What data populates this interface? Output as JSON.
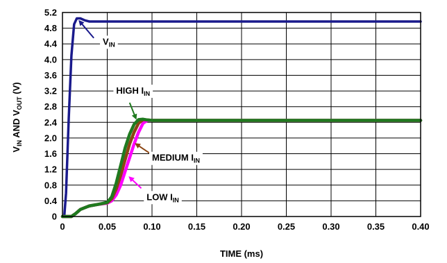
{
  "chart_data": {
    "type": "line",
    "title": "",
    "xlabel": "TIME (ms)",
    "ylabel": {
      "parts": [
        {
          "t": "V",
          "sub": false
        },
        {
          "t": "IN",
          "sub": true
        },
        {
          "t": " AND V",
          "sub": false
        },
        {
          "t": "OUT",
          "sub": true
        },
        {
          "t": " (V)",
          "sub": false
        }
      ]
    },
    "xlim": [
      0,
      0.4
    ],
    "ylim": [
      0,
      5.2
    ],
    "grid": true,
    "legend": "none",
    "x_ticks": [
      {
        "v": 0,
        "label": "0"
      },
      {
        "v": 0.05,
        "label": "0.05"
      },
      {
        "v": 0.1,
        "label": "0.10"
      },
      {
        "v": 0.15,
        "label": "0.15"
      },
      {
        "v": 0.2,
        "label": "0.20"
      },
      {
        "v": 0.25,
        "label": "0.25"
      },
      {
        "v": 0.3,
        "label": "0.30"
      },
      {
        "v": 0.35,
        "label": "0.35"
      },
      {
        "v": 0.4,
        "label": "0.40"
      }
    ],
    "y_ticks": [
      {
        "v": 0,
        "label": "0"
      },
      {
        "v": 0.4,
        "label": "0.4"
      },
      {
        "v": 0.8,
        "label": "0.8"
      },
      {
        "v": 1.2,
        "label": "1.2"
      },
      {
        "v": 1.6,
        "label": "1.6"
      },
      {
        "v": 2.0,
        "label": "2.0"
      },
      {
        "v": 2.4,
        "label": "2.4"
      },
      {
        "v": 2.8,
        "label": "2.8"
      },
      {
        "v": 3.2,
        "label": "3.2"
      },
      {
        "v": 3.6,
        "label": "3.6"
      },
      {
        "v": 4.0,
        "label": "4.0"
      },
      {
        "v": 4.4,
        "label": "4.4"
      },
      {
        "v": 4.8,
        "label": "4.8"
      },
      {
        "v": 5.2,
        "label": "5.2"
      }
    ],
    "series": [
      {
        "key": "vin",
        "color": "#1a1a8c",
        "x": [
          0,
          0.002,
          0.004,
          0.007,
          0.01,
          0.013,
          0.016,
          0.02,
          0.025,
          0.03,
          0.05,
          0.1,
          0.2,
          0.3,
          0.4
        ],
        "y": [
          0.0,
          0.0,
          0.6,
          2.5,
          4.1,
          4.9,
          5.05,
          5.05,
          5.0,
          4.97,
          4.97,
          4.97,
          4.97,
          4.97,
          4.97
        ]
      },
      {
        "key": "low",
        "color": "#ff00ff",
        "x": [
          0,
          0.01,
          0.015,
          0.02,
          0.03,
          0.04,
          0.05,
          0.055,
          0.06,
          0.065,
          0.07,
          0.075,
          0.08,
          0.085,
          0.09,
          0.095,
          0.1,
          0.2,
          0.3,
          0.4
        ],
        "y": [
          0.0,
          0.0,
          0.08,
          0.18,
          0.27,
          0.31,
          0.34,
          0.4,
          0.55,
          0.8,
          1.15,
          1.5,
          1.85,
          2.15,
          2.38,
          2.45,
          2.45,
          2.45,
          2.45,
          2.45
        ]
      },
      {
        "key": "medium",
        "color": "#8b4513",
        "x": [
          0,
          0.01,
          0.015,
          0.02,
          0.03,
          0.04,
          0.05,
          0.055,
          0.06,
          0.065,
          0.07,
          0.075,
          0.08,
          0.085,
          0.09,
          0.095,
          0.1,
          0.2,
          0.3,
          0.4
        ],
        "y": [
          0.0,
          0.0,
          0.08,
          0.18,
          0.27,
          0.31,
          0.35,
          0.45,
          0.7,
          1.05,
          1.45,
          1.85,
          2.15,
          2.38,
          2.47,
          2.46,
          2.45,
          2.45,
          2.45,
          2.45
        ]
      },
      {
        "key": "high",
        "color": "#1f7a1f",
        "x": [
          0,
          0.01,
          0.015,
          0.02,
          0.03,
          0.04,
          0.05,
          0.055,
          0.06,
          0.065,
          0.07,
          0.075,
          0.08,
          0.085,
          0.09,
          0.095,
          0.1,
          0.2,
          0.3,
          0.4
        ],
        "y": [
          0.0,
          0.0,
          0.08,
          0.18,
          0.27,
          0.31,
          0.36,
          0.5,
          0.85,
          1.3,
          1.75,
          2.1,
          2.35,
          2.47,
          2.48,
          2.46,
          2.45,
          2.45,
          2.45,
          2.45
        ]
      }
    ],
    "annotations": [
      {
        "key": "vin_label",
        "parts": [
          {
            "t": "V",
            "sub": false
          },
          {
            "t": "IN",
            "sub": true
          }
        ],
        "x": 0.045,
        "y": 4.38,
        "arrow_color": "#1a1a8c",
        "arrow_from": [
          0.035,
          4.55
        ],
        "arrow_to": [
          0.019,
          4.98
        ]
      },
      {
        "key": "high_label",
        "parts": [
          {
            "t": "HIGH I",
            "sub": false
          },
          {
            "t": "IN",
            "sub": true
          }
        ],
        "x": 0.06,
        "y": 3.13,
        "arrow_color": "#1f7a1f",
        "arrow_from": [
          0.075,
          2.9
        ],
        "arrow_to": [
          0.082,
          2.5
        ]
      },
      {
        "key": "medium_label",
        "parts": [
          {
            "t": "MEDIUM I",
            "sub": false
          },
          {
            "t": "IN",
            "sub": true
          }
        ],
        "x": 0.1,
        "y": 1.42,
        "arrow_color": "#8b4513",
        "arrow_from": [
          0.097,
          1.62
        ],
        "arrow_to": [
          0.082,
          1.85
        ]
      },
      {
        "key": "low_label",
        "parts": [
          {
            "t": "LOW I",
            "sub": false
          },
          {
            "t": "IN",
            "sub": true
          }
        ],
        "x": 0.094,
        "y": 0.42,
        "arrow_color": "#ff00ff",
        "arrow_from": [
          0.088,
          0.72
        ],
        "arrow_to": [
          0.075,
          1.0
        ]
      }
    ]
  }
}
